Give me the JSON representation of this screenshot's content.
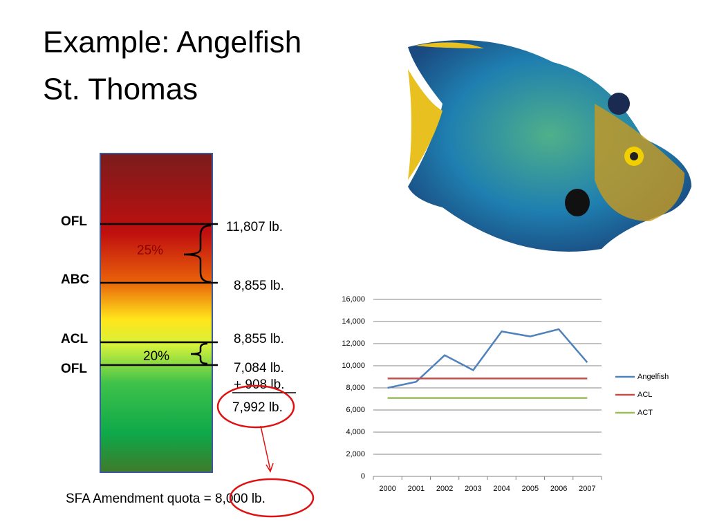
{
  "title": [
    "Example: Angelfish",
    "St. Thomas"
  ],
  "gauge": {
    "labels": [
      "OFL",
      "ABC",
      "ACL",
      "OFL"
    ],
    "amounts": [
      "11,807 lb.",
      "8,855 lb.",
      "8,855 lb.",
      "7,084 lb."
    ],
    "percents": [
      "25%",
      "20%"
    ],
    "buffer": "+ 908 lb.",
    "result": "7,992 lb.",
    "quota": "SFA Amendment quota = 8,000 lb."
  },
  "chart_data": {
    "type": "line",
    "categories": [
      "2000",
      "2001",
      "2002",
      "2003",
      "2004",
      "2005",
      "2006",
      "2007"
    ],
    "series": [
      {
        "name": "Angelfish",
        "color": "#4f81bd",
        "values": [
          8000,
          8550,
          10950,
          9600,
          13100,
          12650,
          13300,
          10300
        ]
      },
      {
        "name": "ACL",
        "color": "#c0504d",
        "values": [
          8855,
          8855,
          8855,
          8855,
          8855,
          8855,
          8855,
          8855
        ]
      },
      {
        "name": "ACT",
        "color": "#9bbb59",
        "values": [
          7084,
          7084,
          7084,
          7084,
          7084,
          7084,
          7084,
          7084
        ]
      }
    ],
    "ylim": [
      0,
      16000
    ],
    "yticks": [
      0,
      {
        "value": 2000,
        "label": "2,000"
      },
      {
        "value": 4000,
        "label": "4,000"
      },
      {
        "value": 6000,
        "label": "6,000"
      },
      {
        "value": 8000,
        "label": "8,000"
      },
      {
        "value": 10000,
        "label": "10,000"
      },
      {
        "value": 12000,
        "label": "12,000"
      },
      {
        "value": 14000,
        "label": "14,000"
      },
      {
        "value": 16000,
        "label": "16,000"
      }
    ],
    "grid": true,
    "legend": "right"
  }
}
